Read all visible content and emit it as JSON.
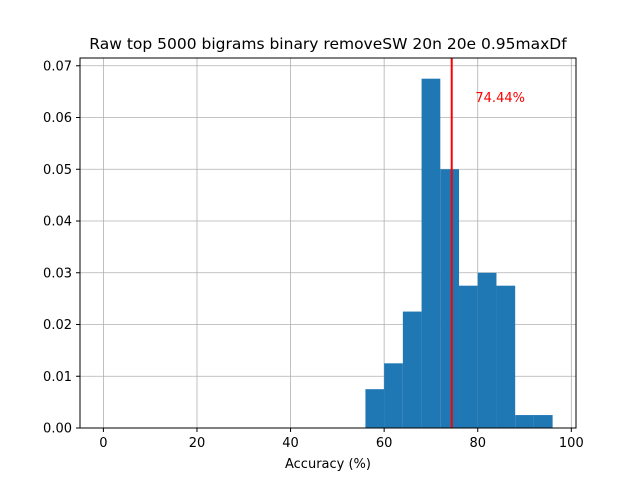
{
  "chart_data": {
    "type": "bar",
    "title": "Raw top 5000 bigrams binary removeSW 20n 20e 0.95maxDf",
    "xlabel": "Accuracy (%)",
    "ylabel": "",
    "xlim": [
      -5,
      101
    ],
    "ylim": [
      0,
      0.0715
    ],
    "grid": true,
    "xticks": [
      0,
      20,
      40,
      60,
      80,
      100
    ],
    "xtick_labels": [
      "0",
      "20",
      "40",
      "60",
      "80",
      "100"
    ],
    "yticks": [
      0,
      0.01,
      0.02,
      0.03,
      0.04,
      0.05,
      0.06,
      0.07
    ],
    "ytick_labels": [
      "0.00",
      "0.01",
      "0.02",
      "0.03",
      "0.04",
      "0.05",
      "0.06",
      "0.07"
    ],
    "bar_color": "#1f77b4",
    "bins": [
      {
        "x0": 56,
        "x1": 60,
        "value": 0.0075
      },
      {
        "x0": 60,
        "x1": 64,
        "value": 0.0125
      },
      {
        "x0": 64,
        "x1": 68,
        "value": 0.0225
      },
      {
        "x0": 68,
        "x1": 72,
        "value": 0.0675
      },
      {
        "x0": 72,
        "x1": 76,
        "value": 0.05
      },
      {
        "x0": 76,
        "x1": 80,
        "value": 0.0275
      },
      {
        "x0": 80,
        "x1": 84,
        "value": 0.03
      },
      {
        "x0": 84,
        "x1": 88,
        "value": 0.0275
      },
      {
        "x0": 88,
        "x1": 92,
        "value": 0.0025
      },
      {
        "x0": 92,
        "x1": 96,
        "value": 0.0025
      }
    ],
    "mean_line": {
      "x": 74.44,
      "color": "#ff0000"
    },
    "annotation": {
      "text": "74.44%",
      "x": 79.5,
      "y": 0.064,
      "color": "#ff0000"
    }
  }
}
